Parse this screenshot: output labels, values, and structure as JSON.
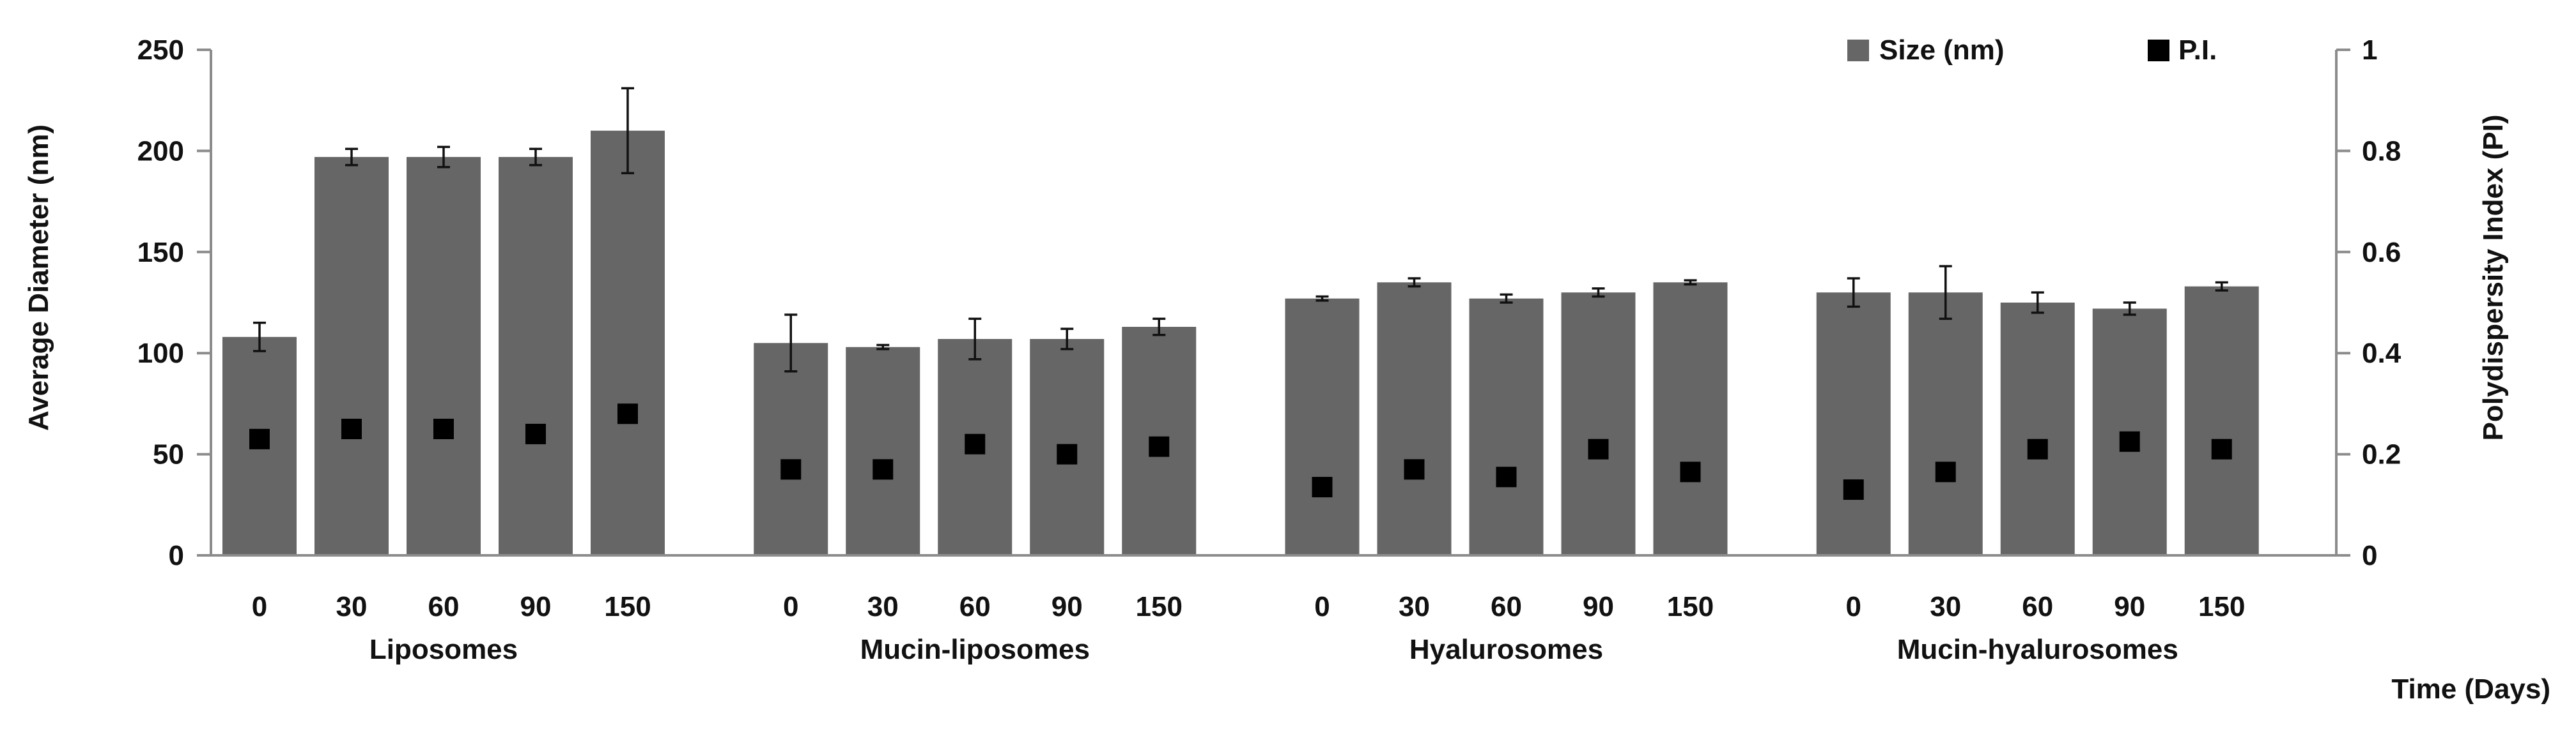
{
  "chart_data": {
    "type": "bar",
    "title": "",
    "xlabel": "Time (Days)",
    "ylabel": "Average Diameter (nm)",
    "y2label": "Polydispersity Index (PI)",
    "ylim": [
      0,
      250
    ],
    "y2lim": [
      0,
      1
    ],
    "yticks": [
      "0",
      "50",
      "100",
      "150",
      "200",
      "250"
    ],
    "y2ticks": [
      "0",
      "0.2",
      "0.4",
      "0.6",
      "0.8",
      "1"
    ],
    "grid": false,
    "legend_position": "top-right",
    "colors": {
      "bar": "#666666",
      "marker": "#000000",
      "axis": "#8c8c8c",
      "errorbar": "#111111"
    },
    "groups": [
      {
        "name": "Liposomes",
        "categories": [
          "0",
          "30",
          "60",
          "90",
          "150"
        ],
        "size": [
          108,
          197,
          197,
          197,
          210
        ],
        "size_err": [
          7,
          4,
          5,
          4,
          21
        ],
        "pi": [
          0.23,
          0.25,
          0.25,
          0.24,
          0.28
        ]
      },
      {
        "name": "Mucin-liposomes",
        "categories": [
          "0",
          "30",
          "60",
          "90",
          "150"
        ],
        "size": [
          105,
          103,
          107,
          107,
          113
        ],
        "size_err": [
          14,
          1,
          10,
          5,
          4
        ],
        "pi": [
          0.17,
          0.17,
          0.22,
          0.2,
          0.215
        ]
      },
      {
        "name": "Hyalurosomes",
        "categories": [
          "0",
          "30",
          "60",
          "90",
          "150"
        ],
        "size": [
          127,
          135,
          127,
          130,
          135
        ],
        "size_err": [
          1,
          2,
          2,
          2,
          1
        ],
        "pi": [
          0.135,
          0.17,
          0.155,
          0.21,
          0.165
        ]
      },
      {
        "name": "Mucin-hyalurosomes",
        "categories": [
          "0",
          "30",
          "60",
          "90",
          "150"
        ],
        "size": [
          130,
          130,
          125,
          122,
          133
        ],
        "size_err": [
          7,
          13,
          5,
          3,
          2
        ],
        "pi": [
          0.13,
          0.165,
          0.21,
          0.225,
          0.21
        ]
      }
    ],
    "series": [
      {
        "name": "Size (nm)",
        "kind": "bar",
        "axis": "left"
      },
      {
        "name": "P.I.",
        "kind": "marker",
        "axis": "right"
      }
    ]
  }
}
